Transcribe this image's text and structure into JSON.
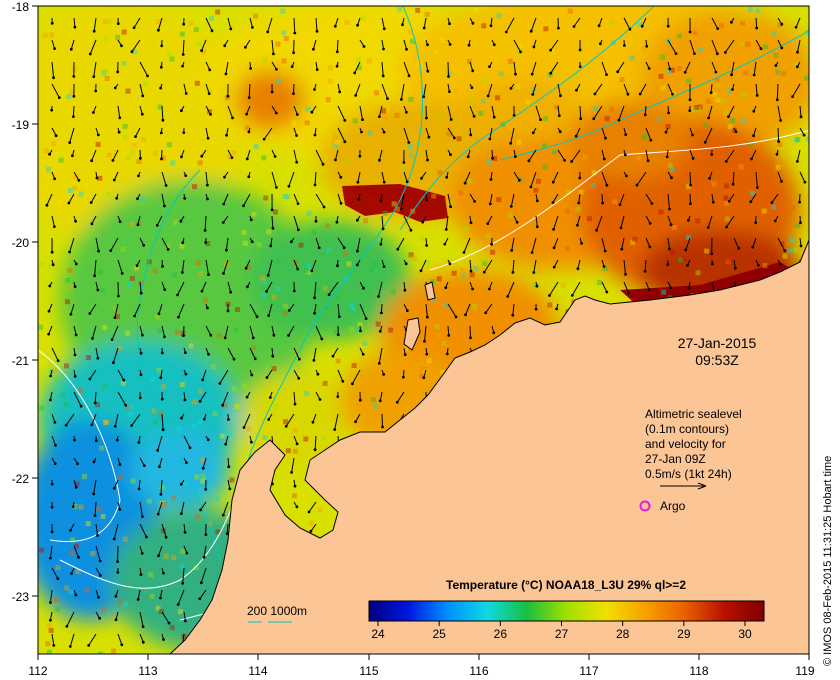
{
  "map": {
    "date": "27-Jan-2015",
    "time": "09:53Z",
    "x_ticks": [
      "112",
      "113",
      "114",
      "115",
      "116",
      "117",
      "118",
      "119"
    ],
    "y_ticks": [
      "-18",
      "-19",
      "-20",
      "-21",
      "-22",
      "-23"
    ],
    "legend_lines": [
      "Altimetric sealevel",
      "(0.1m contours)",
      "and velocity for",
      "27-Jan 09Z",
      "0.5m/s (1kt 24h)"
    ],
    "argo_label": "Argo",
    "depth_label": "200  1000m",
    "colorbar_title": "Temperature (°C) NOAA18_L3U 29% ql>=2",
    "colorbar_ticks": [
      "24",
      "25",
      "26",
      "27",
      "28",
      "29",
      "30"
    ],
    "credit": "© IMOS 08-Feb-2015 11:31:25 Hobart time",
    "colors": {
      "land": "#fbc596",
      "argo": "#e020e0",
      "contour": "#ffffff",
      "bathy": "#00c8c8",
      "colorbar": [
        "#00007f",
        "#0018e0",
        "#0090ff",
        "#10d8e0",
        "#18c040",
        "#a0e000",
        "#f0e000",
        "#f8a000",
        "#e86000",
        "#b81000",
        "#800000"
      ]
    }
  }
}
